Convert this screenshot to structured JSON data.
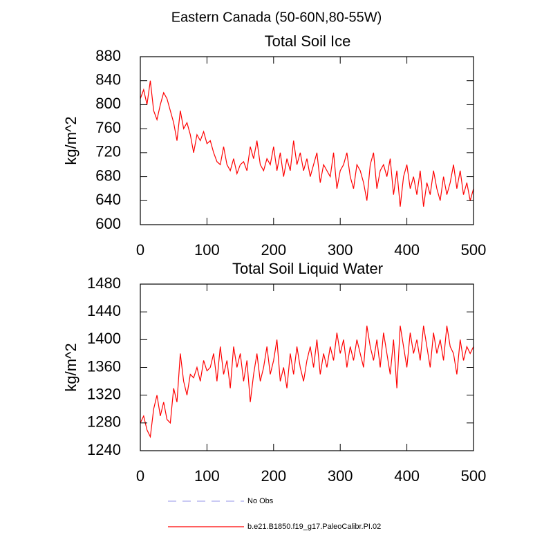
{
  "title": "Eastern Canada (50-60N,80-55W)",
  "legend": [
    {
      "name": "No Obs",
      "color": "#aaaaee",
      "dashed": true
    },
    {
      "name": "b.e21.B1850.f19_g17.PaleoCalibr.PI.02",
      "color": "#ff0000",
      "dashed": false
    }
  ],
  "chart_data": [
    {
      "type": "line",
      "title": "Total Soil Ice",
      "ylabel": "kg/m^2",
      "xlim": [
        0,
        500
      ],
      "xticks": [
        0,
        100,
        200,
        300,
        400,
        500
      ],
      "ylim": [
        600,
        880
      ],
      "yticks": [
        600,
        640,
        680,
        720,
        760,
        800,
        840,
        880
      ],
      "x": [
        0,
        5,
        10,
        15,
        20,
        25,
        30,
        35,
        40,
        45,
        50,
        55,
        60,
        65,
        70,
        75,
        80,
        85,
        90,
        95,
        100,
        105,
        110,
        115,
        120,
        125,
        130,
        135,
        140,
        145,
        150,
        155,
        160,
        165,
        170,
        175,
        180,
        185,
        190,
        195,
        200,
        205,
        210,
        215,
        220,
        225,
        230,
        235,
        240,
        245,
        250,
        255,
        260,
        265,
        270,
        275,
        280,
        285,
        290,
        295,
        300,
        305,
        310,
        315,
        320,
        325,
        330,
        335,
        340,
        345,
        350,
        355,
        360,
        365,
        370,
        375,
        380,
        385,
        390,
        395,
        400,
        405,
        410,
        415,
        420,
        425,
        430,
        435,
        440,
        445,
        450,
        455,
        460,
        465,
        470,
        475,
        480,
        485,
        490,
        495,
        500
      ],
      "series": [
        {
          "color": "#ff0000",
          "values": [
            810,
            825,
            800,
            840,
            790,
            775,
            800,
            820,
            810,
            790,
            770,
            740,
            790,
            760,
            770,
            750,
            720,
            750,
            740,
            755,
            735,
            740,
            720,
            705,
            700,
            730,
            700,
            690,
            710,
            685,
            700,
            705,
            690,
            730,
            710,
            740,
            700,
            690,
            710,
            700,
            730,
            690,
            720,
            680,
            710,
            690,
            740,
            700,
            720,
            690,
            710,
            680,
            700,
            720,
            670,
            700,
            690,
            680,
            720,
            660,
            690,
            700,
            720,
            680,
            660,
            700,
            690,
            670,
            640,
            700,
            720,
            660,
            690,
            700,
            680,
            710,
            650,
            690,
            630,
            680,
            700,
            660,
            680,
            650,
            690,
            630,
            670,
            650,
            690,
            660,
            640,
            680,
            650,
            670,
            700,
            660,
            690,
            650,
            670,
            640,
            660
          ]
        }
      ]
    },
    {
      "type": "line",
      "title": "Total Soil Liquid Water",
      "ylabel": "kg/m^2",
      "xlim": [
        0,
        500
      ],
      "xticks": [
        0,
        100,
        200,
        300,
        400,
        500
      ],
      "ylim": [
        1240,
        1480
      ],
      "yticks": [
        1240,
        1280,
        1320,
        1360,
        1400,
        1440,
        1480
      ],
      "x": [
        0,
        5,
        10,
        15,
        20,
        25,
        30,
        35,
        40,
        45,
        50,
        55,
        60,
        65,
        70,
        75,
        80,
        85,
        90,
        95,
        100,
        105,
        110,
        115,
        120,
        125,
        130,
        135,
        140,
        145,
        150,
        155,
        160,
        165,
        170,
        175,
        180,
        185,
        190,
        195,
        200,
        205,
        210,
        215,
        220,
        225,
        230,
        235,
        240,
        245,
        250,
        255,
        260,
        265,
        270,
        275,
        280,
        285,
        290,
        295,
        300,
        305,
        310,
        315,
        320,
        325,
        330,
        335,
        340,
        345,
        350,
        355,
        360,
        365,
        370,
        375,
        380,
        385,
        390,
        395,
        400,
        405,
        410,
        415,
        420,
        425,
        430,
        435,
        440,
        445,
        450,
        455,
        460,
        465,
        470,
        475,
        480,
        485,
        490,
        495,
        500
      ],
      "series": [
        {
          "color": "#ff0000",
          "values": [
            1280,
            1290,
            1270,
            1260,
            1300,
            1320,
            1290,
            1310,
            1285,
            1280,
            1330,
            1310,
            1380,
            1340,
            1320,
            1350,
            1345,
            1360,
            1340,
            1370,
            1355,
            1360,
            1380,
            1340,
            1390,
            1350,
            1370,
            1330,
            1390,
            1360,
            1380,
            1340,
            1370,
            1310,
            1350,
            1380,
            1340,
            1360,
            1390,
            1350,
            1370,
            1400,
            1340,
            1360,
            1330,
            1380,
            1350,
            1390,
            1360,
            1340,
            1370,
            1390,
            1360,
            1400,
            1350,
            1380,
            1360,
            1390,
            1370,
            1410,
            1380,
            1400,
            1360,
            1390,
            1370,
            1400,
            1380,
            1360,
            1420,
            1390,
            1370,
            1400,
            1360,
            1410,
            1380,
            1350,
            1400,
            1330,
            1420,
            1390,
            1360,
            1410,
            1380,
            1400,
            1370,
            1420,
            1390,
            1360,
            1410,
            1380,
            1400,
            1370,
            1420,
            1390,
            1380,
            1350,
            1400,
            1370,
            1390,
            1380,
            1390
          ]
        }
      ]
    }
  ]
}
